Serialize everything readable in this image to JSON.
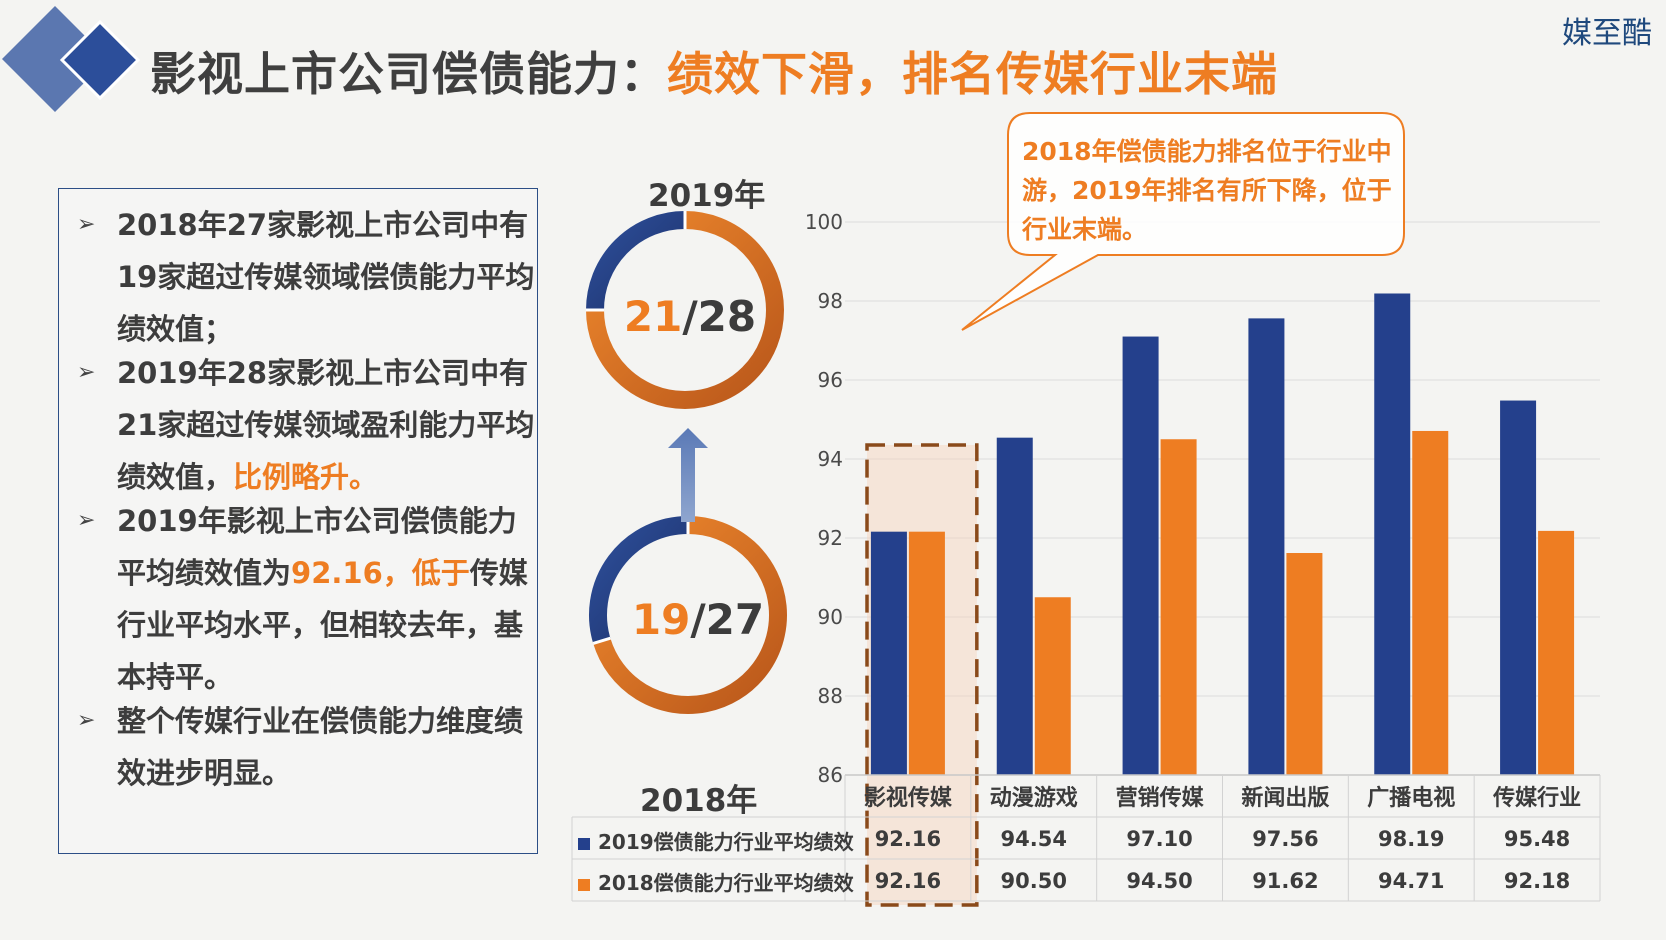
{
  "header": {
    "title_main": "影视上市公司偿债能力：",
    "title_highlight": "绩效下滑，排名传媒行业末端",
    "brand": "媒至酷"
  },
  "bullets": [
    {
      "text": "2018年27家影视上市公司中有19家超过传媒领域偿债能力平均绩效值；",
      "highlight": ""
    },
    {
      "text": "2019年28家影视上市公司中有21家超过传媒领域盈利能力平均绩效值，",
      "highlight": "比例略升。"
    },
    {
      "text": "2019年影视上市公司偿债能力平均绩效值为",
      "highlight": "92.16，低于",
      "tail": "传媒行业平均水平，但相较去年，基本持平。"
    },
    {
      "text": "整个传媒行业在偿债能力维度绩效进步明显。",
      "highlight": ""
    }
  ],
  "bullet_arrow": "➢",
  "donuts": {
    "top": {
      "year": "2019年",
      "num": "21",
      "den": "/28",
      "value": 21,
      "total": 28
    },
    "bottom": {
      "year": "2018年",
      "num": "19",
      "den": "/27",
      "value": 19,
      "total": 27
    }
  },
  "callout": "2018年偿债能力排名位于行业中游，2019年排名有所下降，位于行业末端。",
  "colors": {
    "series_2019": "#24408c",
    "series_2018": "#ee7d22",
    "title_highlight": "#ee7d22",
    "frame": "#2c4e86"
  },
  "chart_data": {
    "type": "bar",
    "categories": [
      "影视传媒",
      "动漫游戏",
      "营销传媒",
      "新闻出版",
      "广播电视",
      "传媒行业"
    ],
    "series": [
      {
        "name": "2019偿债能力行业平均绩效",
        "values": [
          92.16,
          94.54,
          97.1,
          97.56,
          98.19,
          95.48
        ],
        "labels": [
          "92.16",
          "94.54",
          "97.10",
          "97.56",
          "98.19",
          "95.48"
        ]
      },
      {
        "name": "2018偿债能力行业平均绩效",
        "values": [
          92.16,
          90.5,
          94.5,
          91.62,
          94.71,
          92.18
        ],
        "labels": [
          "92.16",
          "90.50",
          "94.50",
          "91.62",
          "94.71",
          "92.18"
        ]
      }
    ],
    "ylim": [
      86,
      100
    ],
    "yticks": [
      "86",
      "88",
      "90",
      "92",
      "94",
      "96",
      "98",
      "100"
    ],
    "grid": true,
    "legend": "data-table-left",
    "highlighted_category": "影视传媒"
  }
}
